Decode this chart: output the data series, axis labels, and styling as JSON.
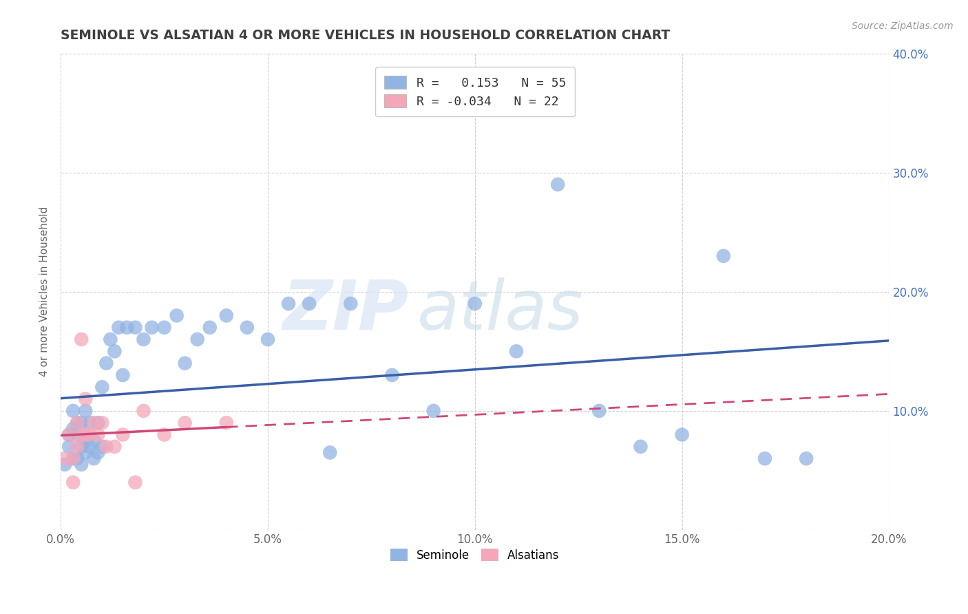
{
  "title": "SEMINOLE VS ALSATIAN 4 OR MORE VEHICLES IN HOUSEHOLD CORRELATION CHART",
  "source_text": "Source: ZipAtlas.com",
  "ylabel": "4 or more Vehicles in Household",
  "xlim": [
    0.0,
    0.2
  ],
  "ylim": [
    0.0,
    0.4
  ],
  "xticks": [
    0.0,
    0.05,
    0.1,
    0.15,
    0.2
  ],
  "xticklabels": [
    "0.0%",
    "5.0%",
    "10.0%",
    "15.0%",
    "20.0%"
  ],
  "yticks": [
    0.0,
    0.1,
    0.2,
    0.3,
    0.4
  ],
  "yticklabels_left": [
    "",
    "",
    "",
    "",
    ""
  ],
  "yticklabels_right": [
    "",
    "10.0%",
    "20.0%",
    "30.0%",
    "40.0%"
  ],
  "seminole_R": 0.153,
  "seminole_N": 55,
  "alsatian_R": -0.034,
  "alsatian_N": 22,
  "seminole_color": "#92b4e3",
  "alsatian_color": "#f4a7b9",
  "seminole_line_color": "#3a5fa8",
  "alsatian_line_color": "#d04878",
  "legend_labels": [
    "Seminole",
    "Alsatians"
  ],
  "watermark_zip": "ZIP",
  "watermark_atlas": "atlas",
  "background_color": "#ffffff",
  "title_color": "#404040",
  "seminole_x": [
    0.001,
    0.002,
    0.002,
    0.003,
    0.003,
    0.003,
    0.004,
    0.004,
    0.004,
    0.005,
    0.005,
    0.005,
    0.006,
    0.006,
    0.006,
    0.007,
    0.007,
    0.008,
    0.008,
    0.009,
    0.009,
    0.01,
    0.01,
    0.011,
    0.012,
    0.013,
    0.014,
    0.015,
    0.016,
    0.018,
    0.02,
    0.022,
    0.025,
    0.028,
    0.03,
    0.033,
    0.036,
    0.04,
    0.045,
    0.05,
    0.055,
    0.06,
    0.065,
    0.07,
    0.08,
    0.09,
    0.1,
    0.11,
    0.12,
    0.13,
    0.14,
    0.15,
    0.16,
    0.17,
    0.18
  ],
  "seminole_y": [
    0.055,
    0.08,
    0.07,
    0.06,
    0.085,
    0.1,
    0.06,
    0.08,
    0.09,
    0.055,
    0.07,
    0.09,
    0.065,
    0.075,
    0.1,
    0.07,
    0.09,
    0.06,
    0.075,
    0.065,
    0.09,
    0.07,
    0.12,
    0.14,
    0.16,
    0.15,
    0.17,
    0.13,
    0.17,
    0.17,
    0.16,
    0.17,
    0.17,
    0.18,
    0.14,
    0.16,
    0.17,
    0.18,
    0.17,
    0.16,
    0.19,
    0.19,
    0.065,
    0.19,
    0.13,
    0.1,
    0.19,
    0.15,
    0.29,
    0.1,
    0.07,
    0.08,
    0.23,
    0.06,
    0.06
  ],
  "alsatian_x": [
    0.001,
    0.002,
    0.003,
    0.003,
    0.004,
    0.004,
    0.005,
    0.005,
    0.006,
    0.006,
    0.007,
    0.008,
    0.009,
    0.01,
    0.011,
    0.013,
    0.015,
    0.018,
    0.02,
    0.025,
    0.03,
    0.04
  ],
  "alsatian_y": [
    0.06,
    0.08,
    0.04,
    0.06,
    0.07,
    0.09,
    0.08,
    0.16,
    0.08,
    0.11,
    0.08,
    0.09,
    0.08,
    0.09,
    0.07,
    0.07,
    0.08,
    0.04,
    0.1,
    0.08,
    0.09,
    0.09
  ]
}
